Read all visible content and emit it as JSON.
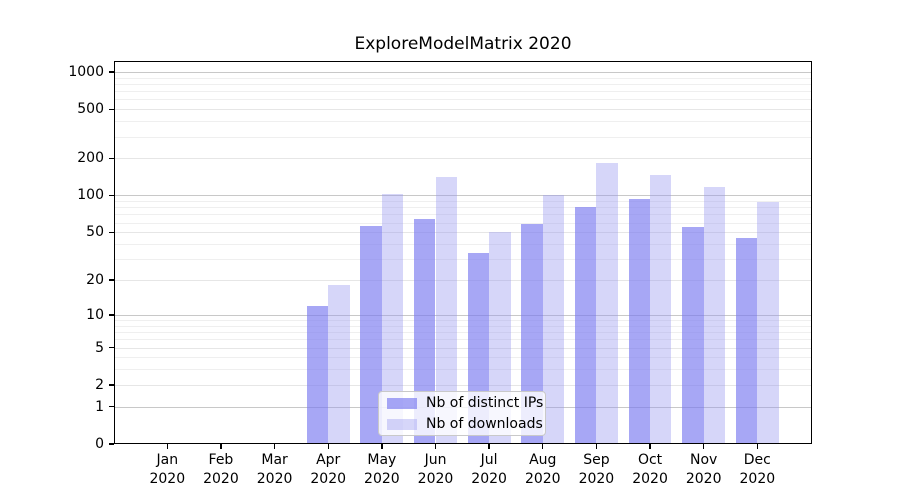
{
  "chart_data": {
    "type": "bar",
    "title": "ExploreModelMatrix 2020",
    "categories": [
      "Jan 2020",
      "Feb 2020",
      "Mar 2020",
      "Apr 2020",
      "May 2020",
      "Jun 2020",
      "Jul 2020",
      "Aug 2020",
      "Sep 2020",
      "Oct 2020",
      "Nov 2020",
      "Dec 2020"
    ],
    "category_months": [
      "Jan",
      "Feb",
      "Mar",
      "Apr",
      "May",
      "Jun",
      "Jul",
      "Aug",
      "Sep",
      "Oct",
      "Nov",
      "Dec"
    ],
    "category_year": "2020",
    "series": [
      {
        "name": "Nb of distinct IPs",
        "color": "#a7a7f5",
        "fill": "rgba(122,122,240,0.66)",
        "values": [
          0,
          0,
          0,
          12,
          56,
          64,
          34,
          59,
          80,
          93,
          55,
          45
        ]
      },
      {
        "name": "Nb of downloads",
        "color": "#d7d7f9",
        "fill": "rgba(148,148,240,0.38)",
        "values": [
          0,
          0,
          0,
          18,
          102,
          140,
          50,
          100,
          185,
          147,
          118,
          89
        ]
      }
    ],
    "y_axis": {
      "ticks": [
        0,
        1,
        2,
        5,
        10,
        20,
        50,
        100,
        200,
        500,
        1000
      ],
      "scale": "log1p",
      "top_value": 1230
    },
    "grid": {
      "show": true,
      "decade_lines": [
        1,
        10,
        100,
        1000
      ],
      "decade_color": "#c8c8c8",
      "labeled_minor_lines": [
        2,
        5,
        20,
        50,
        200,
        500
      ],
      "labeled_minor_color": "#e6e6e6",
      "minor_lines": [
        3,
        4,
        6,
        7,
        8,
        9,
        30,
        40,
        60,
        70,
        80,
        90,
        300,
        400,
        600,
        700,
        800,
        900
      ],
      "minor_color": "#efefef"
    },
    "legend": {
      "position": "lower center",
      "entries": [
        "Nb of distinct IPs",
        "Nb of downloads"
      ]
    }
  }
}
